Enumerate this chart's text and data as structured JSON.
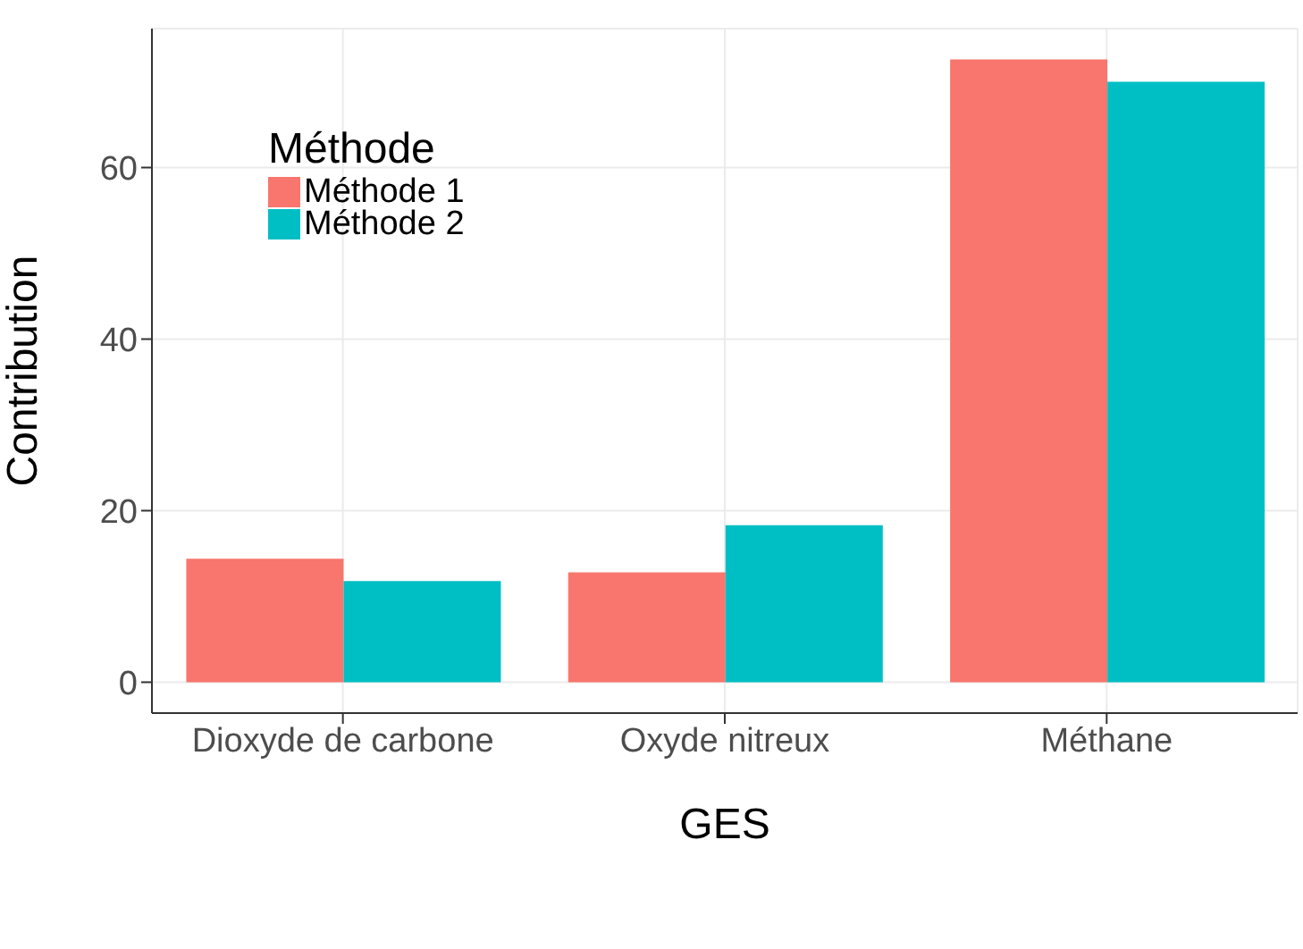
{
  "chart_data": {
    "type": "bar",
    "xlabel": "GES",
    "ylabel": "Contribution",
    "legend_title": "Méthode",
    "categories": [
      "Dioxyde de carbone",
      "Oxyde nitreux",
      "Méthane"
    ],
    "series": [
      {
        "name": "Méthode 1",
        "color": "#f8766d",
        "values": [
          14.4,
          12.8,
          72.6
        ]
      },
      {
        "name": "Méthode 2",
        "color": "#00bfc4",
        "values": [
          11.8,
          18.3,
          70.0
        ]
      }
    ],
    "ylim": [
      -3.6,
      76.2
    ],
    "yticks": [
      0,
      20,
      40,
      60
    ],
    "grid": true,
    "legend": "top left"
  }
}
